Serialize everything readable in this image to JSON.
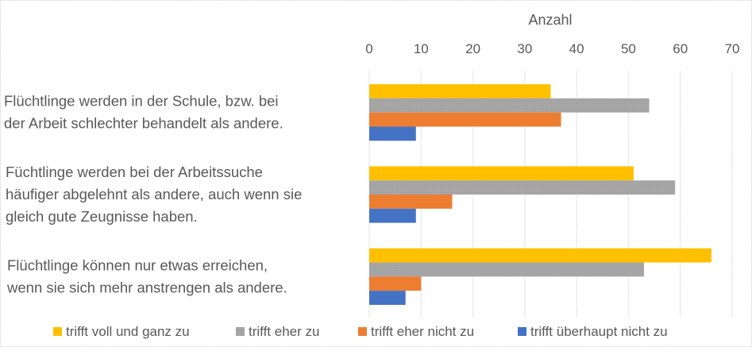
{
  "chart_data": {
    "type": "bar",
    "orientation": "horizontal",
    "title": "",
    "xlabel": "Anzahl",
    "ylabel": "",
    "xlim": [
      0,
      70
    ],
    "x_ticks": [
      0,
      10,
      20,
      30,
      40,
      50,
      60,
      70
    ],
    "x_tick_labels": [
      "0",
      "10",
      "20",
      "30",
      "40",
      "50",
      "60",
      "70"
    ],
    "x_axis_position": "top",
    "grid": true,
    "legend_position": "bottom",
    "categories": [
      [
        "Flüchtlinge werden in der Schule, bzw. bei",
        "der Arbeit schlechter behandelt als andere."
      ],
      [
        "Füchtlinge werden bei der Arbeitssuche",
        "häufiger abgelehnt als andere, auch wenn sie",
        "gleich gute Zeugnisse haben."
      ],
      [
        "Flüchtlinge können nur etwas erreichen,",
        "wenn sie sich mehr anstrengen als andere."
      ]
    ],
    "series": [
      {
        "name": "trifft voll und ganz zu",
        "color": "#FFC000",
        "values": [
          35,
          51,
          66
        ]
      },
      {
        "name": "trifft eher zu",
        "color": "#A5A5A5",
        "values": [
          54,
          59,
          53
        ]
      },
      {
        "name": "trifft eher nicht zu",
        "color": "#ED7D31",
        "values": [
          37,
          16,
          10
        ]
      },
      {
        "name": "trifft überhaupt nicht zu",
        "color": "#4472C4",
        "values": [
          9,
          9,
          7
        ]
      }
    ]
  }
}
